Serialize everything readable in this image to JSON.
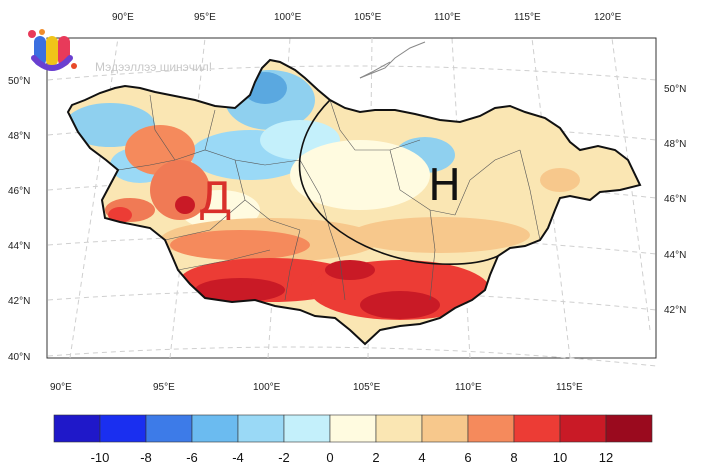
{
  "top_lon_labels": [
    "90°E",
    "95°E",
    "100°E",
    "105°E",
    "110°E",
    "115°E",
    "120°E"
  ],
  "bottom_lon_labels": [
    "90°E",
    "95°E",
    "100°E",
    "105°E",
    "110°E",
    "115°E"
  ],
  "left_lat_labels": [
    "50°N",
    "48°N",
    "46°N",
    "44°N",
    "42°N",
    "40°N"
  ],
  "right_lat_labels": [
    "50°N",
    "48°N",
    "46°N",
    "44°N",
    "42°N"
  ],
  "region_labels": {
    "west": "Д",
    "east": "Н"
  },
  "watermark": "Мэдээллээ шинэчил!",
  "colorbar": {
    "ticks": [
      "-10",
      "-8",
      "-6",
      "-4",
      "-2",
      "0",
      "2",
      "4",
      "6",
      "8",
      "10",
      "12"
    ],
    "colors": [
      "#1f18c9",
      "#1a2ff0",
      "#3d7be8",
      "#6bbbf0",
      "#9ad9f6",
      "#c4f0fb",
      "#fffbe0",
      "#fae6b3",
      "#f7c88c",
      "#f58a5c",
      "#ec3c35",
      "#c91a26",
      "#9a0a1e"
    ]
  },
  "legend_colors": {
    "strong_warm": "#d42a2a",
    "warm": "#f07a55",
    "mild_warm": "#f7c88c",
    "neutral": "#fae6b3",
    "cool": "#8fd0ef",
    "cold": "#5aa8e0"
  }
}
